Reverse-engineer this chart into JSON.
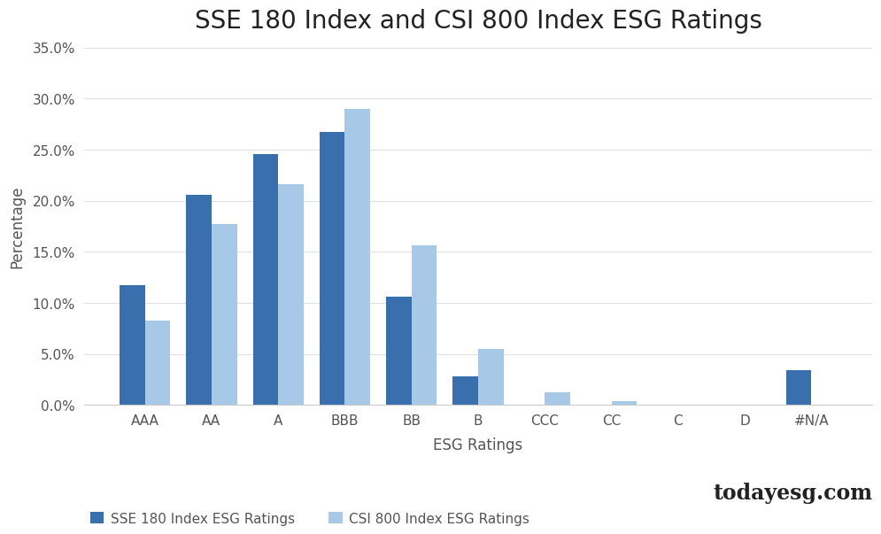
{
  "title": "SSE 180 Index and CSI 800 Index ESG Ratings",
  "categories": [
    "AAA",
    "AA",
    "A",
    "BBB",
    "BB",
    "B",
    "CCC",
    "CC",
    "C",
    "D",
    "#N/A"
  ],
  "sse180": [
    11.7,
    20.6,
    24.6,
    26.7,
    10.6,
    2.8,
    0.0,
    0.0,
    0.0,
    0.0,
    3.4
  ],
  "csi800": [
    8.3,
    17.7,
    21.6,
    29.0,
    15.6,
    5.5,
    1.2,
    0.4,
    0.0,
    0.0,
    0.0
  ],
  "sse_color": "#3a6fad",
  "csi_color": "#a8c8e8",
  "xlabel": "ESG Ratings",
  "ylabel": "Percentage",
  "ylim": [
    0,
    35
  ],
  "yticks": [
    0,
    5,
    10,
    15,
    20,
    25,
    30,
    35
  ],
  "legend_sse": "SSE 180 Index ESG Ratings",
  "legend_csi": "CSI 800 Index ESG Ratings",
  "background_color": "#ffffff",
  "watermark": "todayesg.com",
  "title_fontsize": 20,
  "axis_label_fontsize": 12,
  "tick_fontsize": 11,
  "legend_fontsize": 11
}
